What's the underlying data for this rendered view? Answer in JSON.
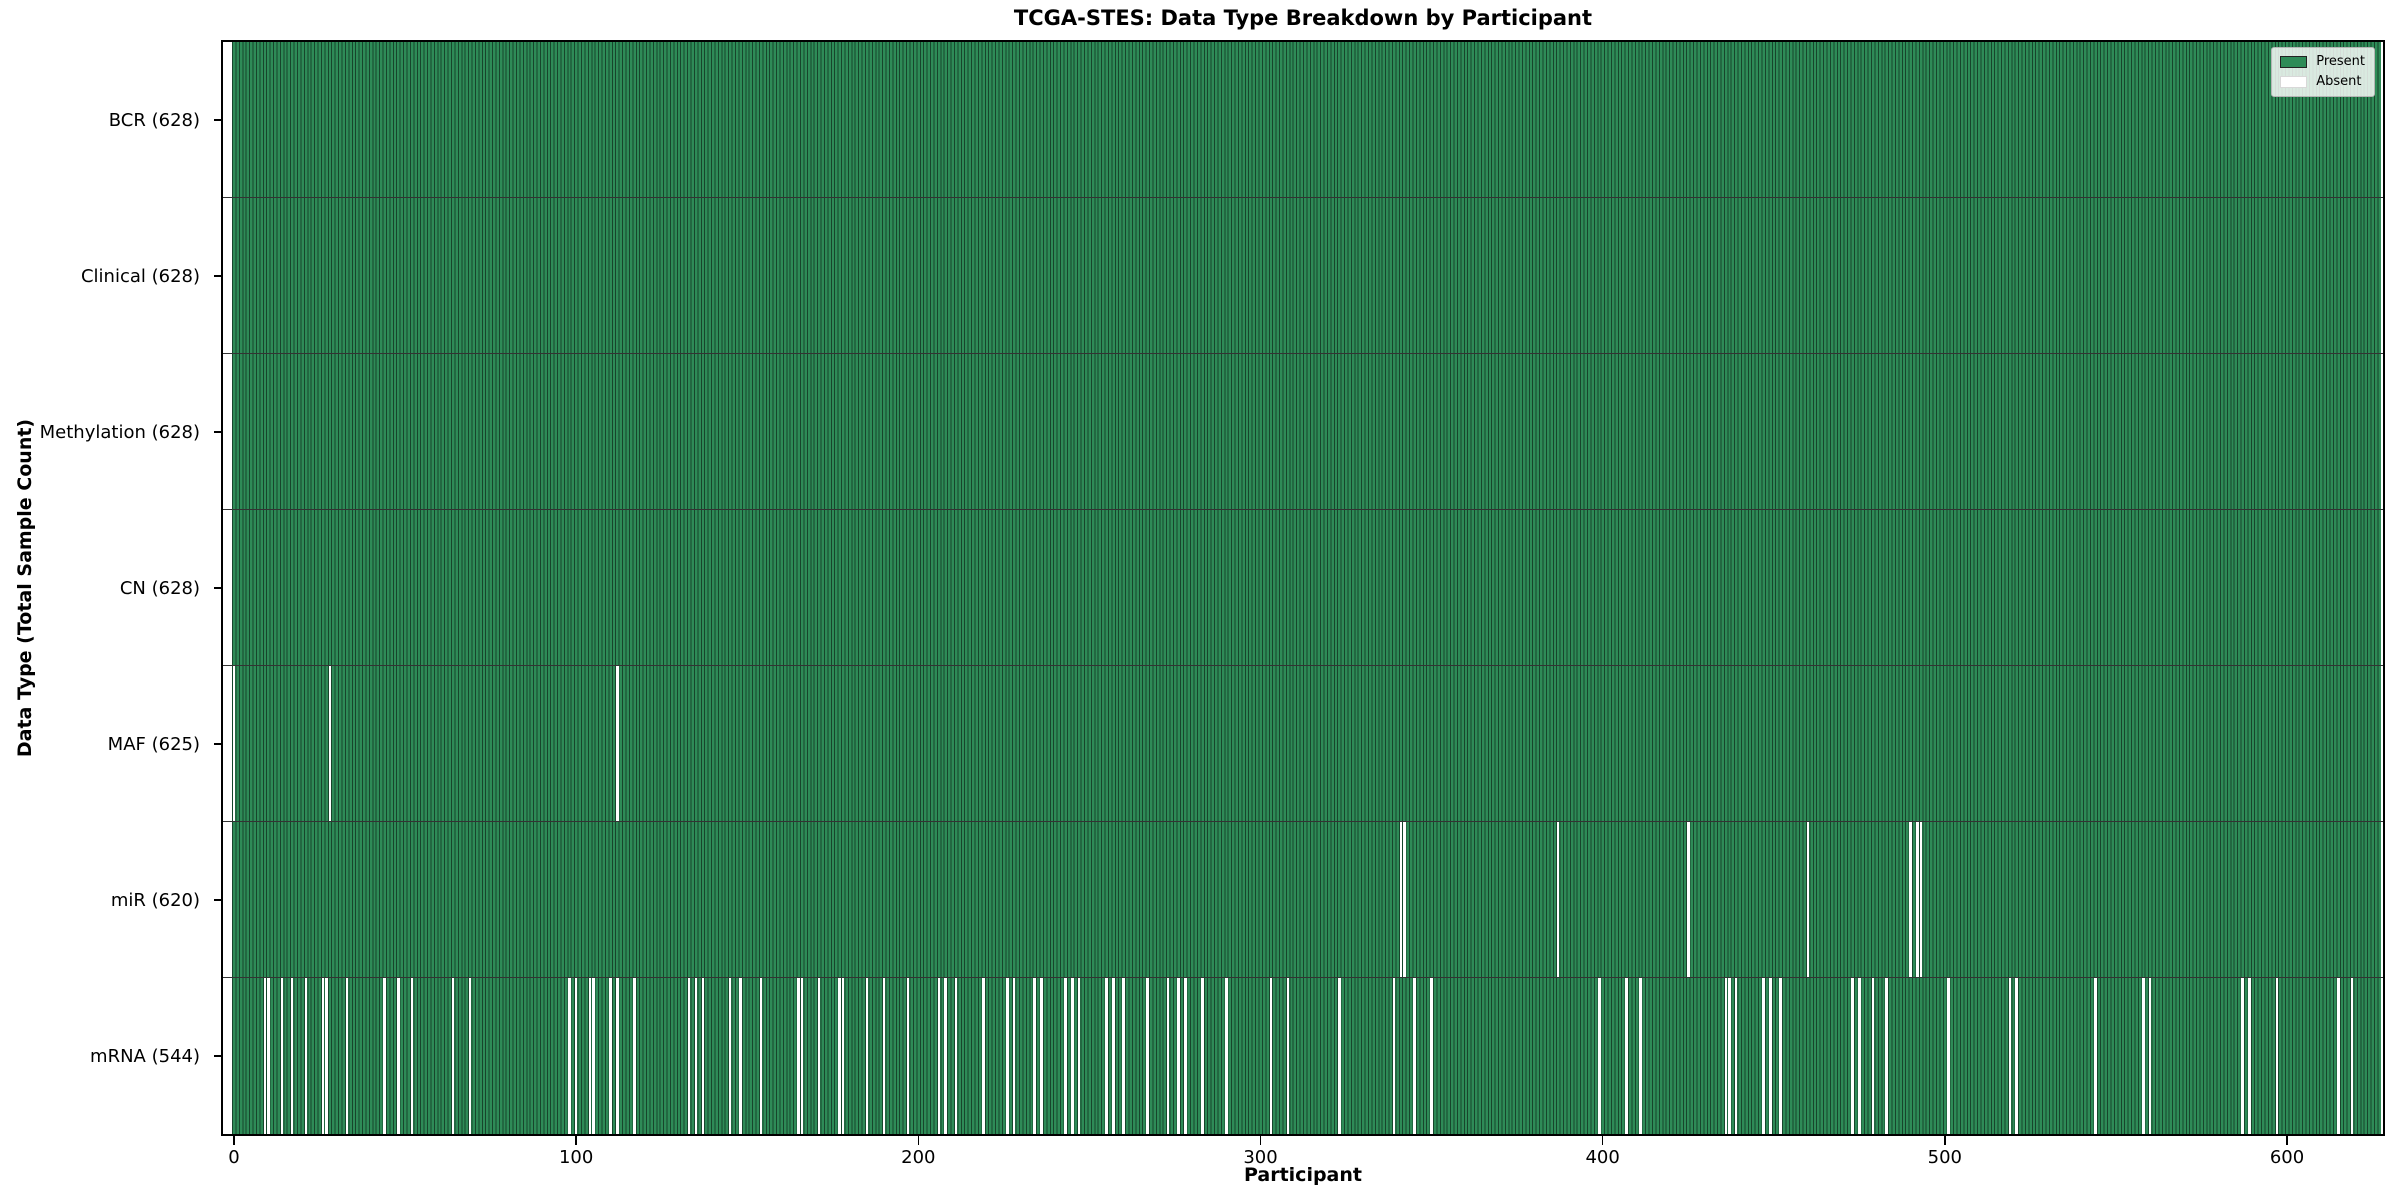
{
  "title": "TCGA-STES: Data Type Breakdown by Participant",
  "x_axis": {
    "label": "Participant",
    "ticks": [
      0,
      100,
      200,
      300,
      400,
      500,
      600
    ]
  },
  "y_axis": {
    "label": "Data Type (Total Sample Count)"
  },
  "legend": {
    "items": [
      {
        "label": "Present",
        "color": "#2e8b57"
      },
      {
        "label": "Absent",
        "color": "#ffffff"
      }
    ]
  },
  "colors": {
    "present": "#2e8b57",
    "absent": "#ffffff",
    "bar_edge": "#1c4a30",
    "plot_border": "#000000"
  },
  "chart_data": {
    "type": "heatmap",
    "subtype": "presence-absence-matrix",
    "n_participants": 628,
    "x_range": [
      0,
      627
    ],
    "grid": false,
    "legend_position": "upper right",
    "rows": [
      {
        "name": "BCR",
        "label": "BCR (628)",
        "present_count": 628,
        "absent_participants": []
      },
      {
        "name": "Clinical",
        "label": "Clinical (628)",
        "present_count": 628,
        "absent_participants": []
      },
      {
        "name": "Methylation",
        "label": "Methylation (628)",
        "present_count": 628,
        "absent_participants": []
      },
      {
        "name": "CN",
        "label": "CN (628)",
        "present_count": 628,
        "absent_participants": []
      },
      {
        "name": "MAF",
        "label": "MAF (625)",
        "present_count": 625,
        "absent_participants": [
          0,
          28,
          112
        ]
      },
      {
        "name": "miR",
        "label": "miR (620)",
        "present_count": 620,
        "absent_participants": [
          341,
          342,
          387,
          425,
          460,
          490,
          492,
          493
        ]
      },
      {
        "name": "mRNA",
        "label": "mRNA (544)",
        "present_count": 544,
        "absent_participants": [
          9,
          10,
          14,
          17,
          21,
          26,
          27,
          33,
          44,
          48,
          52,
          64,
          69,
          98,
          100,
          104,
          105,
          110,
          112,
          117,
          133,
          135,
          137,
          145,
          148,
          154,
          165,
          166,
          171,
          177,
          178,
          185,
          190,
          197,
          206,
          208,
          211,
          219,
          226,
          228,
          234,
          236,
          243,
          245,
          247,
          255,
          257,
          260,
          267,
          273,
          276,
          278,
          283,
          290,
          303,
          308,
          323,
          339,
          345,
          350,
          399,
          407,
          411,
          436,
          437,
          439,
          447,
          449,
          452,
          473,
          475,
          479,
          483,
          501,
          519,
          521,
          544,
          558,
          560,
          587,
          589,
          597,
          615,
          619
        ]
      }
    ]
  }
}
